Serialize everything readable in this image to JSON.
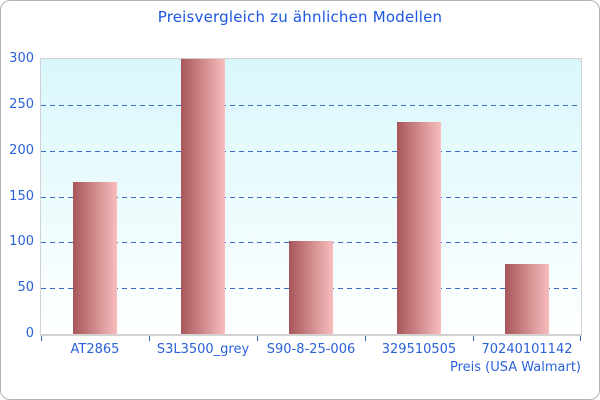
{
  "chart_data": {
    "type": "bar",
    "title": "Preisvergleich zu ähnlichen Modellen",
    "categories": [
      "AT2865",
      "S3L3500_grey",
      "S90-8-25-006",
      "329510505",
      "70240101142"
    ],
    "values": [
      166,
      300,
      101,
      231,
      76
    ],
    "xlabel": "Preis (USA Walmart)",
    "ylabel": "",
    "ylim": [
      0,
      300
    ],
    "yticks": [
      0,
      50,
      100,
      150,
      200,
      250,
      300
    ],
    "grid": "horizontal-dashed",
    "legend": "none",
    "colors": {
      "title_text": "#1b57e0",
      "axis_text": "#2b62d9",
      "gridline": "#3a6bc8",
      "tick": "#2d62c9",
      "bar_gradient_left": "#a8565a",
      "bar_gradient_right": "#f8bdbd",
      "plot_bg_top": "#d9f7fb",
      "plot_bg_bottom": "#feffff",
      "plot_border": "#d2d2d2",
      "outer_border": "#b3b3b3",
      "background": "#ffffff"
    }
  }
}
